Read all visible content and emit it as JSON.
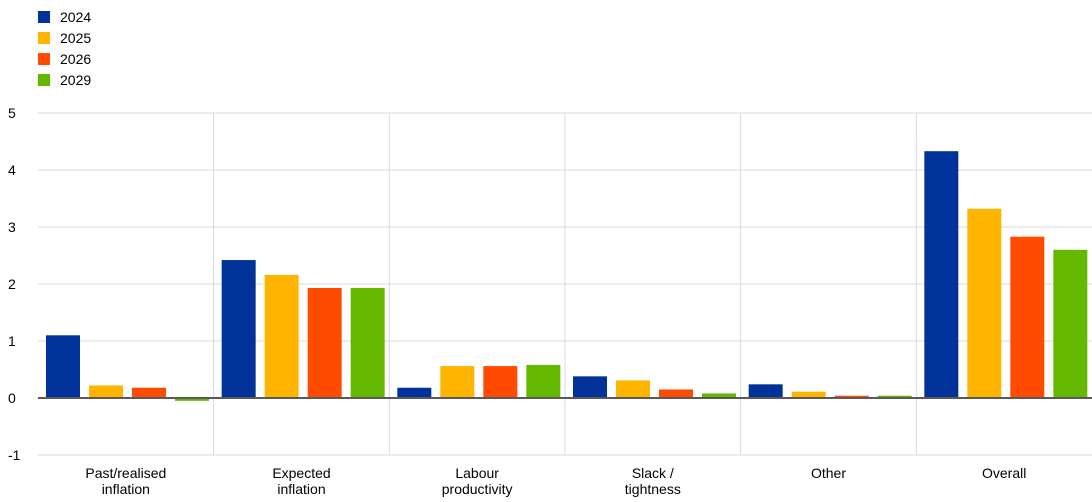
{
  "chart_data": {
    "type": "bar",
    "title": "",
    "xlabel": "",
    "ylabel": "",
    "ylim": [
      -1,
      5
    ],
    "yticks": [
      -1,
      0,
      1,
      2,
      3,
      4,
      5
    ],
    "grid": true,
    "legend_position": "top-left",
    "categories": [
      [
        "Past/realised",
        "inflation"
      ],
      [
        "Expected",
        "inflation"
      ],
      [
        "Labour",
        "productivity"
      ],
      [
        "Slack /",
        "tightness"
      ],
      [
        "Other"
      ],
      [
        "Overall"
      ]
    ],
    "series": [
      {
        "name": "2024",
        "color": "#003299",
        "values": [
          1.1,
          2.42,
          0.18,
          0.38,
          0.24,
          4.33
        ]
      },
      {
        "name": "2025",
        "color": "#FFB400",
        "values": [
          0.22,
          2.16,
          0.56,
          0.31,
          0.11,
          3.32
        ]
      },
      {
        "name": "2026",
        "color": "#FF4B00",
        "values": [
          0.18,
          1.93,
          0.56,
          0.15,
          0.04,
          2.83
        ]
      },
      {
        "name": "2029",
        "color": "#65B800",
        "values": [
          -0.05,
          1.93,
          0.58,
          0.08,
          0.04,
          2.6
        ]
      }
    ]
  }
}
